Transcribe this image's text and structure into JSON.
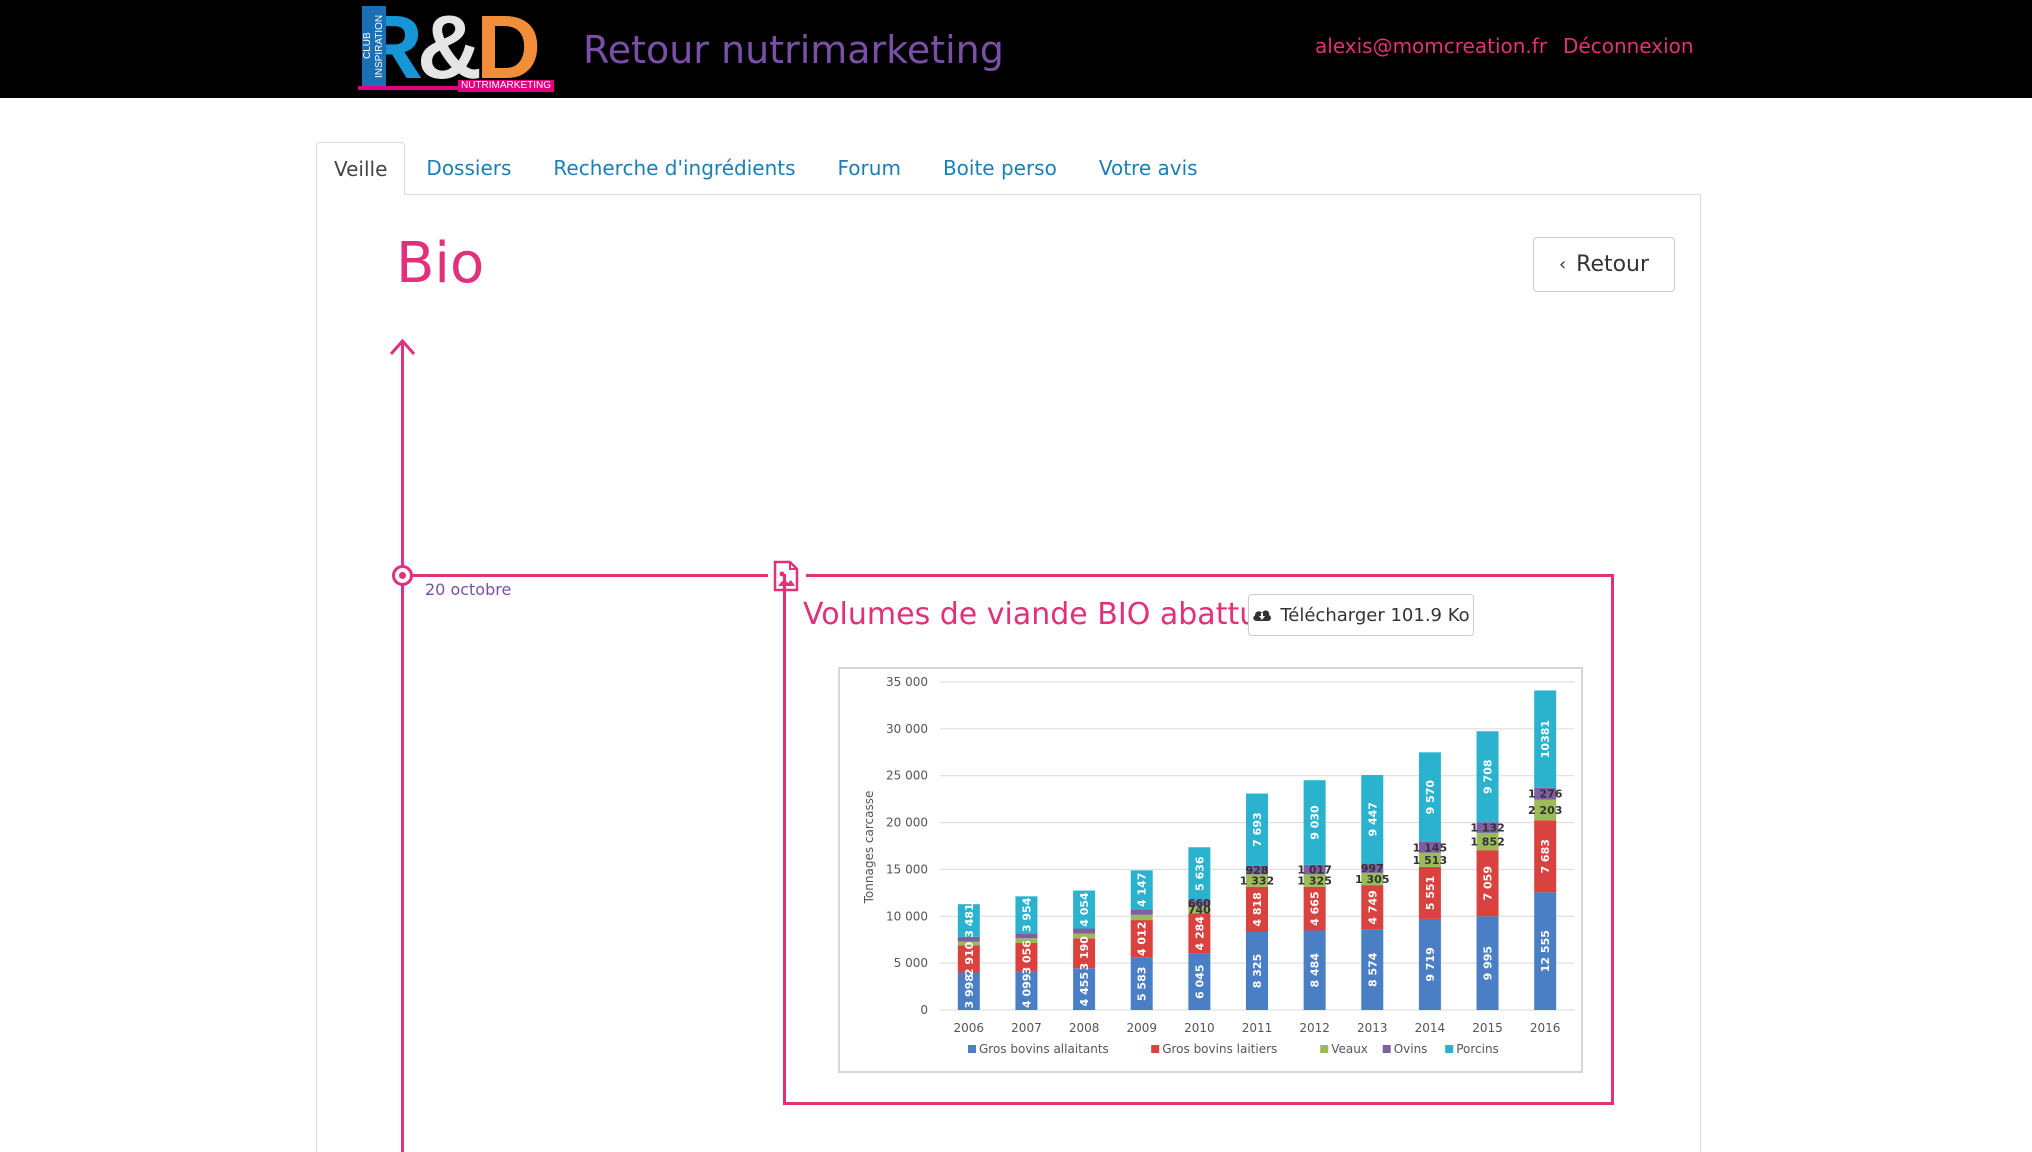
{
  "header": {
    "logo_text": "R&D",
    "logo_club": "CLUB INSPIRATION",
    "logo_nutri": "NUTRIMARKETING",
    "app_title": "Retour nutrimarketing",
    "user_email": "alexis@momcreation.fr",
    "logout_label": "Déconnexion"
  },
  "tabs": [
    {
      "label": "Veille",
      "active": true
    },
    {
      "label": "Dossiers",
      "active": false
    },
    {
      "label": "Recherche d'ingrédients",
      "active": false
    },
    {
      "label": "Forum",
      "active": false
    },
    {
      "label": "Boite perso",
      "active": false
    },
    {
      "label": "Votre avis",
      "active": false
    }
  ],
  "page": {
    "title": "Bio",
    "back_label": "Retour"
  },
  "timeline": {
    "entry": {
      "date": "20 octobre",
      "title": "Volumes de viande BIO abattue",
      "download_label": "Télécharger 101.9 Ko"
    }
  },
  "colors": {
    "accent": "#e0317a",
    "title_purple": "#7a4fa8",
    "link_blue": "#1a7fb8"
  },
  "chart_data": {
    "type": "bar",
    "stacked": true,
    "ylabel": "Tonnages carcasse",
    "ylim": [
      0,
      35000
    ],
    "yticks": [
      "0",
      "5 000",
      "10 000",
      "15 000",
      "20 000",
      "25 000",
      "30 000",
      "35 000"
    ],
    "ytick_values": [
      0,
      5000,
      10000,
      15000,
      20000,
      25000,
      30000,
      35000
    ],
    "categories": [
      "2006",
      "2007",
      "2008",
      "2009",
      "2010",
      "2011",
      "2012",
      "2013",
      "2014",
      "2015",
      "2016"
    ],
    "legend_position": "bottom",
    "grid": true,
    "series": [
      {
        "name": "Gros bovins allaitants",
        "color": "#4a7fc6",
        "values": [
          3998,
          4099,
          4455,
          5583,
          6045,
          8325,
          8484,
          8574,
          9719,
          9995,
          12555
        ],
        "labels": [
          "3 998",
          "4 099",
          "4 455",
          "5 583",
          "6 045",
          "8 325",
          "8 484",
          "8 574",
          "9 719",
          "9 995",
          "12 555"
        ]
      },
      {
        "name": "Gros bovins laitiers",
        "color": "#d9423f",
        "values": [
          2910,
          3056,
          3190,
          4012,
          4284,
          4818,
          4665,
          4749,
          5551,
          7059,
          7683
        ],
        "labels": [
          "2 910",
          "3 056",
          "3 190",
          "4 012",
          "4 284",
          "4 818",
          "4 665",
          "4 749",
          "5 551",
          "7 059",
          "7 683"
        ]
      },
      {
        "name": "Veaux",
        "color": "#9bbb59",
        "values": [
          400,
          500,
          520,
          560,
          740,
          1332,
          1325,
          1305,
          1513,
          1852,
          2203
        ],
        "labels": [
          "",
          "",
          "",
          "",
          "740",
          "1 332",
          "1 325",
          "1 305",
          "1 513",
          "1 852",
          "2 203"
        ]
      },
      {
        "name": "Ovins",
        "color": "#7e60a0",
        "values": [
          500,
          520,
          530,
          600,
          660,
          928,
          1017,
          997,
          1145,
          1132,
          1276
        ],
        "labels": [
          "",
          "",
          "",
          "",
          "660",
          "928",
          "1 017",
          "997",
          "1 145",
          "1 132",
          "1 276"
        ]
      },
      {
        "name": "Porcins",
        "color": "#2ab2cf",
        "values": [
          3481,
          3954,
          4054,
          4147,
          5636,
          7693,
          9030,
          9447,
          9570,
          9708,
          10381
        ],
        "labels": [
          "3 481",
          "3 954",
          "4 054",
          "4 147",
          "5 636",
          "7 693",
          "9 030",
          "9 447",
          "9 570",
          "9 708",
          "10381"
        ]
      }
    ]
  }
}
